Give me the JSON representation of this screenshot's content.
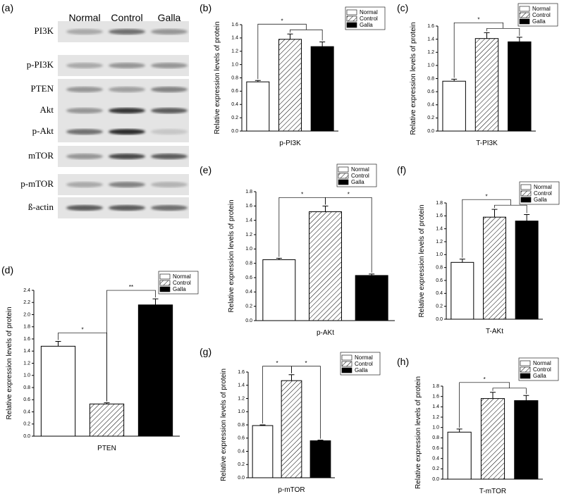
{
  "blot": {
    "label": "(a)",
    "columns": [
      "Normal",
      "Control",
      "Galla"
    ],
    "rows": [
      "PI3K",
      "p-PI3K",
      "PTEN",
      "Akt",
      "p-Akt",
      "mTOR",
      "p-mTOR",
      "ß-actin"
    ]
  },
  "chart_data": [
    {
      "type": "bar",
      "label": "(b)",
      "ylabel": "Relative expression levels of protein",
      "xlabel": "p-PI3K",
      "annotations": [
        "*"
      ],
      "series": [
        {
          "name": "Normal",
          "color": "#ffffff",
          "hatch": false,
          "values": [
            0.74
          ],
          "errors": [
            0.02
          ]
        },
        {
          "name": "Control",
          "color": "#ffffff",
          "hatch": true,
          "values": [
            1.38
          ],
          "errors": [
            0.08
          ]
        },
        {
          "name": "Galla",
          "color": "#000000",
          "hatch": false,
          "values": [
            1.27
          ],
          "errors": [
            0.07
          ]
        }
      ],
      "ylim": [
        0,
        1.6
      ],
      "yticks": [
        {
          "value": 0,
          "label": "0.0"
        },
        0.2,
        0.4,
        0.6,
        0.8,
        {
          "value": 1,
          "label": "1.0"
        },
        1.2,
        1.4,
        1.6
      ]
    },
    {
      "type": "bar",
      "label": "(c)",
      "ylabel": "Relative expression levels of protein",
      "xlabel": "T-PI3K",
      "annotations": [
        "*"
      ],
      "series": [
        {
          "name": "Normal",
          "color": "#ffffff",
          "hatch": false,
          "values": [
            0.76
          ],
          "errors": [
            0.03
          ]
        },
        {
          "name": "Control",
          "color": "#ffffff",
          "hatch": true,
          "values": [
            1.41
          ],
          "errors": [
            0.09
          ]
        },
        {
          "name": "Galla",
          "color": "#000000",
          "hatch": false,
          "values": [
            1.36
          ],
          "errors": [
            0.07
          ]
        }
      ],
      "ylim": [
        0,
        1.6
      ],
      "yticks": [
        {
          "value": 0,
          "label": "0.0"
        },
        0.2,
        0.4,
        0.6,
        0.8,
        {
          "value": 1,
          "label": "1.0"
        },
        1.2,
        1.4,
        1.6
      ]
    },
    {
      "type": "bar",
      "label": "(d)",
      "ylabel": "Relative expression levels of protein",
      "xlabel": "PTEN",
      "annotations": [
        "*",
        "**"
      ],
      "series": [
        {
          "name": "Normal",
          "color": "#ffffff",
          "hatch": false,
          "values": [
            1.48
          ],
          "errors": [
            0.08
          ]
        },
        {
          "name": "Control",
          "color": "#ffffff",
          "hatch": true,
          "values": [
            0.53
          ],
          "errors": [
            0.02
          ]
        },
        {
          "name": "Galla",
          "color": "#000000",
          "hatch": false,
          "values": [
            2.16
          ],
          "errors": [
            0.1
          ]
        }
      ],
      "ylim": [
        0,
        2.4
      ],
      "yticks": [
        {
          "value": 0,
          "label": "0.0"
        },
        0.2,
        0.4,
        0.6,
        0.8,
        {
          "value": 1,
          "label": "1.0"
        },
        1.2,
        1.4,
        1.6,
        1.8,
        {
          "value": 2,
          "label": "2.0"
        },
        2.2,
        2.4
      ]
    },
    {
      "type": "bar",
      "label": "(e)",
      "ylabel": "Relative expression levels of protein",
      "xlabel": "p-AKt",
      "annotations": [
        "*",
        "*"
      ],
      "series": [
        {
          "name": "Normal",
          "color": "#ffffff",
          "hatch": false,
          "values": [
            0.85
          ],
          "errors": [
            0.02
          ]
        },
        {
          "name": "Control",
          "color": "#ffffff",
          "hatch": true,
          "values": [
            1.52
          ],
          "errors": [
            0.08
          ]
        },
        {
          "name": "Galla",
          "color": "#000000",
          "hatch": false,
          "values": [
            0.63
          ],
          "errors": [
            0.02
          ]
        }
      ],
      "ylim": [
        0,
        1.8
      ],
      "yticks": [
        {
          "value": 0,
          "label": "0.0"
        },
        0.2,
        0.4,
        0.6,
        0.8,
        {
          "value": 1,
          "label": "1.0"
        },
        1.2,
        1.4,
        1.6,
        1.8
      ]
    },
    {
      "type": "bar",
      "label": "(f)",
      "ylabel": "Relative expression levels of protein",
      "xlabel": "T-AKt",
      "annotations": [
        "*"
      ],
      "series": [
        {
          "name": "Normal",
          "color": "#ffffff",
          "hatch": false,
          "values": [
            0.88
          ],
          "errors": [
            0.05
          ]
        },
        {
          "name": "Control",
          "color": "#ffffff",
          "hatch": true,
          "values": [
            1.58
          ],
          "errors": [
            0.12
          ]
        },
        {
          "name": "Galla",
          "color": "#000000",
          "hatch": false,
          "values": [
            1.52
          ],
          "errors": [
            0.1
          ]
        }
      ],
      "ylim": [
        0,
        1.8
      ],
      "yticks": [
        {
          "value": 0,
          "label": "0.0"
        },
        0.2,
        0.4,
        0.6,
        0.8,
        {
          "value": 1,
          "label": "1.0"
        },
        1.2,
        1.4,
        1.6,
        1.8
      ]
    },
    {
      "type": "bar",
      "label": "(g)",
      "ylabel": "Relative expression levels of protein",
      "xlabel": "p-mTOR",
      "annotations": [
        "*",
        "*"
      ],
      "series": [
        {
          "name": "Normal",
          "color": "#ffffff",
          "hatch": false,
          "values": [
            0.79
          ],
          "errors": [
            0.01
          ]
        },
        {
          "name": "Control",
          "color": "#ffffff",
          "hatch": true,
          "values": [
            1.47
          ],
          "errors": [
            0.09
          ]
        },
        {
          "name": "Galla",
          "color": "#000000",
          "hatch": false,
          "values": [
            0.56
          ],
          "errors": [
            0.01
          ]
        }
      ],
      "ylim": [
        0,
        1.6
      ],
      "yticks": [
        {
          "value": 0,
          "label": "0.0"
        },
        0.2,
        0.4,
        0.6,
        0.8,
        {
          "value": 1,
          "label": "1.0"
        },
        1.2,
        1.4,
        1.6
      ]
    },
    {
      "type": "bar",
      "label": "(h)",
      "ylabel": "Relative expression levels of protein",
      "xlabel": "T-mTOR",
      "annotations": [
        "*"
      ],
      "series": [
        {
          "name": "Normal",
          "color": "#ffffff",
          "hatch": false,
          "values": [
            0.91
          ],
          "errors": [
            0.06
          ]
        },
        {
          "name": "Control",
          "color": "#ffffff",
          "hatch": true,
          "values": [
            1.56
          ],
          "errors": [
            0.12
          ]
        },
        {
          "name": "Galla",
          "color": "#000000",
          "hatch": false,
          "values": [
            1.52
          ],
          "errors": [
            0.1
          ]
        }
      ],
      "ylim": [
        0,
        1.8
      ],
      "yticks": [
        {
          "value": 0,
          "label": "0.0"
        },
        0.2,
        0.4,
        0.6,
        0.8,
        {
          "value": 1,
          "label": "1.0"
        },
        1.2,
        1.4,
        1.6,
        1.8
      ]
    }
  ]
}
